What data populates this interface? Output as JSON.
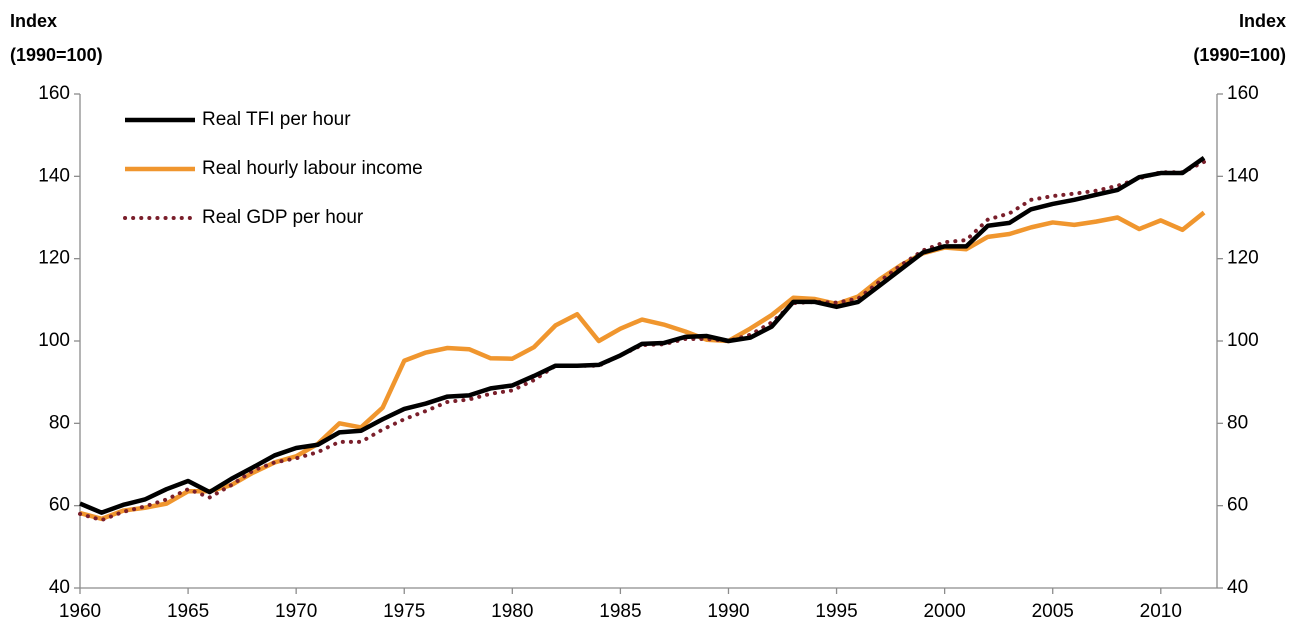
{
  "chart_data": {
    "type": "line",
    "ylabel": [
      "Index",
      "(1990=100)"
    ],
    "y2label": [
      "Index",
      "(1990=100)"
    ],
    "x": [
      1960,
      1961,
      1962,
      1963,
      1964,
      1965,
      1966,
      1967,
      1968,
      1969,
      1970,
      1971,
      1972,
      1973,
      1974,
      1975,
      1976,
      1977,
      1978,
      1979,
      1980,
      1981,
      1982,
      1983,
      1984,
      1985,
      1986,
      1987,
      1988,
      1989,
      1990,
      1991,
      1992,
      1993,
      1994,
      1995,
      1996,
      1997,
      1998,
      1999,
      2000,
      2001,
      2002,
      2003,
      2004,
      2005,
      2006,
      2007,
      2008,
      2009,
      2010,
      2011,
      2012
    ],
    "xlim": [
      1960,
      2012.6
    ],
    "xticks": [
      1960,
      1965,
      1970,
      1975,
      1980,
      1985,
      1990,
      1995,
      2000,
      2005,
      2010
    ],
    "ylim": [
      40,
      160
    ],
    "yticks": [
      40,
      60,
      80,
      100,
      120,
      140,
      160
    ],
    "y2lim": [
      40,
      160
    ],
    "y2ticks": [
      40,
      60,
      80,
      100,
      120,
      140,
      160
    ],
    "legend": "upper left",
    "series": [
      {
        "name": "Real TFI per hour",
        "color": "#000000",
        "style": "solid",
        "values": [
          60.5,
          58.3,
          60.2,
          61.5,
          64,
          66,
          63.3,
          66.5,
          69.3,
          72.2,
          74,
          74.8,
          77.8,
          78.2,
          81,
          83.5,
          84.8,
          86.5,
          86.8,
          88.5,
          89.2,
          91.5,
          94,
          94,
          94.2,
          96.5,
          99.3,
          99.5,
          101,
          101.2,
          100,
          100.8,
          103.5,
          109.5,
          109.5,
          108.3,
          109.5,
          113.5,
          117.5,
          121.5,
          123,
          123,
          128,
          128.7,
          132,
          133.3,
          134.3,
          135.5,
          136.7,
          139.8,
          140.8,
          140.8,
          144.5
        ]
      },
      {
        "name": "Real hourly labour income",
        "color": "#f0962e",
        "style": "solid",
        "values": [
          58.2,
          56.8,
          58.8,
          59.5,
          60.5,
          63.5,
          63.5,
          65,
          68,
          70.5,
          72,
          75,
          80,
          79,
          83.8,
          95.2,
          97.2,
          98.3,
          98,
          95.8,
          95.7,
          98.5,
          103.8,
          106.5,
          100,
          103,
          105.2,
          104,
          102.3,
          100.3,
          100,
          103,
          106.3,
          110.5,
          110.2,
          109,
          110.8,
          115,
          118.5,
          121.3,
          122.7,
          122.3,
          125.3,
          126,
          127.6,
          128.8,
          128.2,
          129,
          130,
          127.2,
          129.3,
          127,
          131.2
        ]
      },
      {
        "name": "Real GDP per hour",
        "color": "#7a1f2b",
        "style": "dotted",
        "values": [
          58,
          56.5,
          58.5,
          59.8,
          61.5,
          64,
          62,
          65,
          68.5,
          70.5,
          71.5,
          73,
          75.5,
          75.5,
          78.5,
          81,
          83,
          85.2,
          85.8,
          87.2,
          88,
          90.5,
          94,
          94,
          94,
          96.5,
          99,
          99.2,
          100.5,
          100.5,
          100,
          101.5,
          104.5,
          109.2,
          109.5,
          109.3,
          110.3,
          114.5,
          118.5,
          122,
          124,
          124.5,
          129.5,
          131,
          134.3,
          135.2,
          135.8,
          136.5,
          137.7,
          139.5,
          141,
          141,
          143.5
        ]
      }
    ]
  }
}
